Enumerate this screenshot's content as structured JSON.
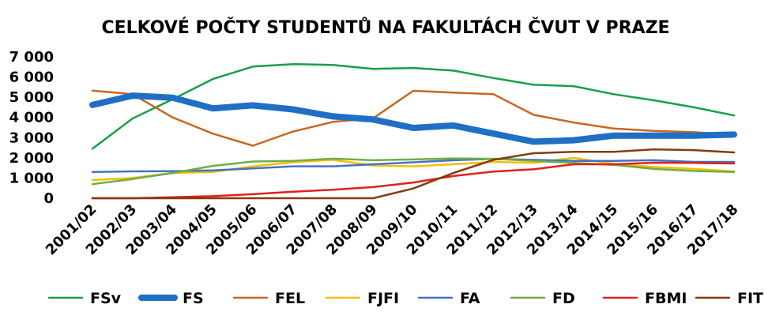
{
  "chart_data": {
    "type": "line",
    "title": "CELKOVÉ POČTY STUDENTŮ NA FAKULTÁCH ČVUT V PRAZE",
    "xlabel": "",
    "ylabel": "",
    "ylim": [
      0,
      7000
    ],
    "yticks": [
      0,
      1000,
      2000,
      3000,
      4000,
      5000,
      6000,
      7000
    ],
    "ytick_labels": [
      "0",
      "1 000",
      "2 000",
      "3 000",
      "4 000",
      "5 000",
      "6 000",
      "7 000"
    ],
    "grid": false,
    "legend": "bottom",
    "categories": [
      "2001/02",
      "2002/03",
      "2003/04",
      "2004/05",
      "2005/06",
      "2006/07",
      "2007/08",
      "2008/09",
      "2009/10",
      "2010/11",
      "2011/12",
      "2012/13",
      "2013/14",
      "2014/15",
      "2015/16",
      "2016/17",
      "2017/18"
    ],
    "series": [
      {
        "name": "FSv",
        "color": "#17a04a",
        "width": 2.5,
        "values": [
          2450,
          3950,
          4900,
          5900,
          6520,
          6640,
          6600,
          6400,
          6450,
          6320,
          5950,
          5620,
          5550,
          5150,
          4850,
          4500,
          4100
        ]
      },
      {
        "name": "FS",
        "color": "#1f6fc5",
        "width": 8,
        "values": [
          4620,
          5080,
          4980,
          4450,
          4600,
          4400,
          4050,
          3900,
          3480,
          3600,
          3200,
          2800,
          2870,
          3100,
          3100,
          3100,
          3150
        ]
      },
      {
        "name": "FEL",
        "color": "#c8671f",
        "width": 2.5,
        "values": [
          5330,
          5150,
          4000,
          3200,
          2600,
          3300,
          3780,
          3960,
          5320,
          5230,
          5150,
          4130,
          3750,
          3450,
          3330,
          3270,
          3150
        ]
      },
      {
        "name": "FJFI",
        "color": "#f5c000",
        "width": 2.5,
        "values": [
          900,
          1000,
          1250,
          1300,
          1580,
          1780,
          1900,
          1620,
          1580,
          1680,
          1800,
          1750,
          2000,
          1700,
          1550,
          1450,
          1330
        ]
      },
      {
        "name": "FA",
        "color": "#4472c4",
        "width": 2.5,
        "values": [
          1300,
          1330,
          1340,
          1380,
          1480,
          1580,
          1580,
          1680,
          1780,
          1880,
          1950,
          1900,
          1850,
          1850,
          1880,
          1800,
          1800
        ]
      },
      {
        "name": "FD",
        "color": "#70ad47",
        "width": 2.5,
        "values": [
          700,
          950,
          1250,
          1600,
          1820,
          1850,
          1960,
          1880,
          1920,
          1970,
          1950,
          1850,
          1750,
          1650,
          1450,
          1350,
          1300
        ]
      },
      {
        "name": "FBMI",
        "color": "#e02020",
        "width": 2.5,
        "values": [
          0,
          0,
          50,
          100,
          200,
          320,
          420,
          550,
          780,
          1100,
          1320,
          1430,
          1680,
          1680,
          1760,
          1750,
          1720
        ]
      },
      {
        "name": "FIT",
        "color": "#843c0c",
        "width": 2.5,
        "values": [
          0,
          0,
          0,
          0,
          0,
          0,
          0,
          0,
          480,
          1250,
          1900,
          2230,
          2300,
          2300,
          2420,
          2380,
          2270
        ]
      }
    ]
  }
}
